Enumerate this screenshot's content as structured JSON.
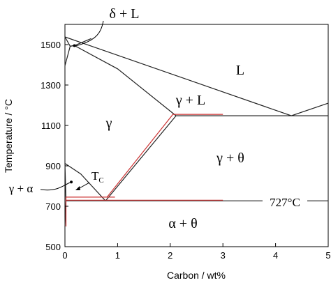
{
  "chart_data": {
    "type": "line",
    "xlabel": "Carbon / wt%",
    "ylabel": "Temperature / °C",
    "xlim": [
      0,
      5
    ],
    "ylim": [
      500,
      1600
    ],
    "xticks": [
      "0",
      "1",
      "2",
      "3",
      "4",
      "5"
    ],
    "yticks": [
      "500",
      "700",
      "900",
      "1100",
      "1300",
      "1500"
    ],
    "series": [
      {
        "color": "#222222",
        "points": [
          [
            0.0,
            1538
          ],
          [
            4.3,
            1148
          ],
          [
            5.0,
            1210
          ]
        ]
      },
      {
        "color": "#222222",
        "points": [
          [
            0.0,
            1395
          ],
          [
            0.1,
            1492
          ],
          [
            0.18,
            1495
          ],
          [
            1.0,
            1380
          ],
          [
            2.11,
            1148
          ]
        ]
      },
      {
        "color": "#222222",
        "points": [
          [
            0.0,
            1538
          ],
          [
            0.1,
            1492
          ]
        ]
      },
      {
        "color": "#222222",
        "points": [
          [
            0.1,
            1492
          ],
          [
            0.18,
            1495
          ],
          [
            0.5,
            1530
          ]
        ]
      },
      {
        "color": "#222222",
        "points": [
          [
            2.11,
            1148
          ],
          [
            5.0,
            1148
          ]
        ]
      },
      {
        "color": "#222222",
        "points": [
          [
            0.0,
            912
          ],
          [
            0.3,
            860
          ],
          [
            0.77,
            727
          ]
        ]
      },
      {
        "color": "#222222",
        "points": [
          [
            0.77,
            727
          ],
          [
            2.11,
            1148
          ]
        ]
      },
      {
        "color": "#222222",
        "points": [
          [
            0.02,
            727
          ],
          [
            5.0,
            727
          ]
        ]
      },
      {
        "color": "#222222",
        "points": [
          [
            0.0,
            912
          ],
          [
            0.02,
            727
          ]
        ]
      },
      {
        "color": "#222222",
        "points": [
          [
            0.02,
            727
          ],
          [
            0.0,
            600
          ]
        ]
      },
      {
        "color": "#cc3333",
        "points": [
          [
            0.8,
            745
          ],
          [
            2.05,
            1155
          ],
          [
            3.0,
            1155
          ]
        ]
      },
      {
        "color": "#cc3333",
        "points": [
          [
            0.02,
            745
          ],
          [
            0.95,
            745
          ]
        ]
      },
      {
        "color": "#cc3333",
        "points": [
          [
            0.02,
            730
          ],
          [
            3.0,
            730
          ]
        ]
      },
      {
        "color": "#cc3333",
        "points": [
          [
            0.02,
            745
          ],
          [
            0.02,
            600
          ]
        ]
      }
    ],
    "dots": [
      [
        0.18,
        1495
      ],
      [
        0.12,
        820
      ]
    ],
    "labels": {
      "delta_L": "δ + L",
      "L": "L",
      "gamma_L": "γ + L",
      "gamma": "γ",
      "gamma_theta": "γ + θ",
      "gamma_alpha": "γ + α",
      "Tc_main": "T",
      "Tc_sub": "C",
      "iso_727": "727°C",
      "alpha_theta": "α + θ"
    }
  }
}
